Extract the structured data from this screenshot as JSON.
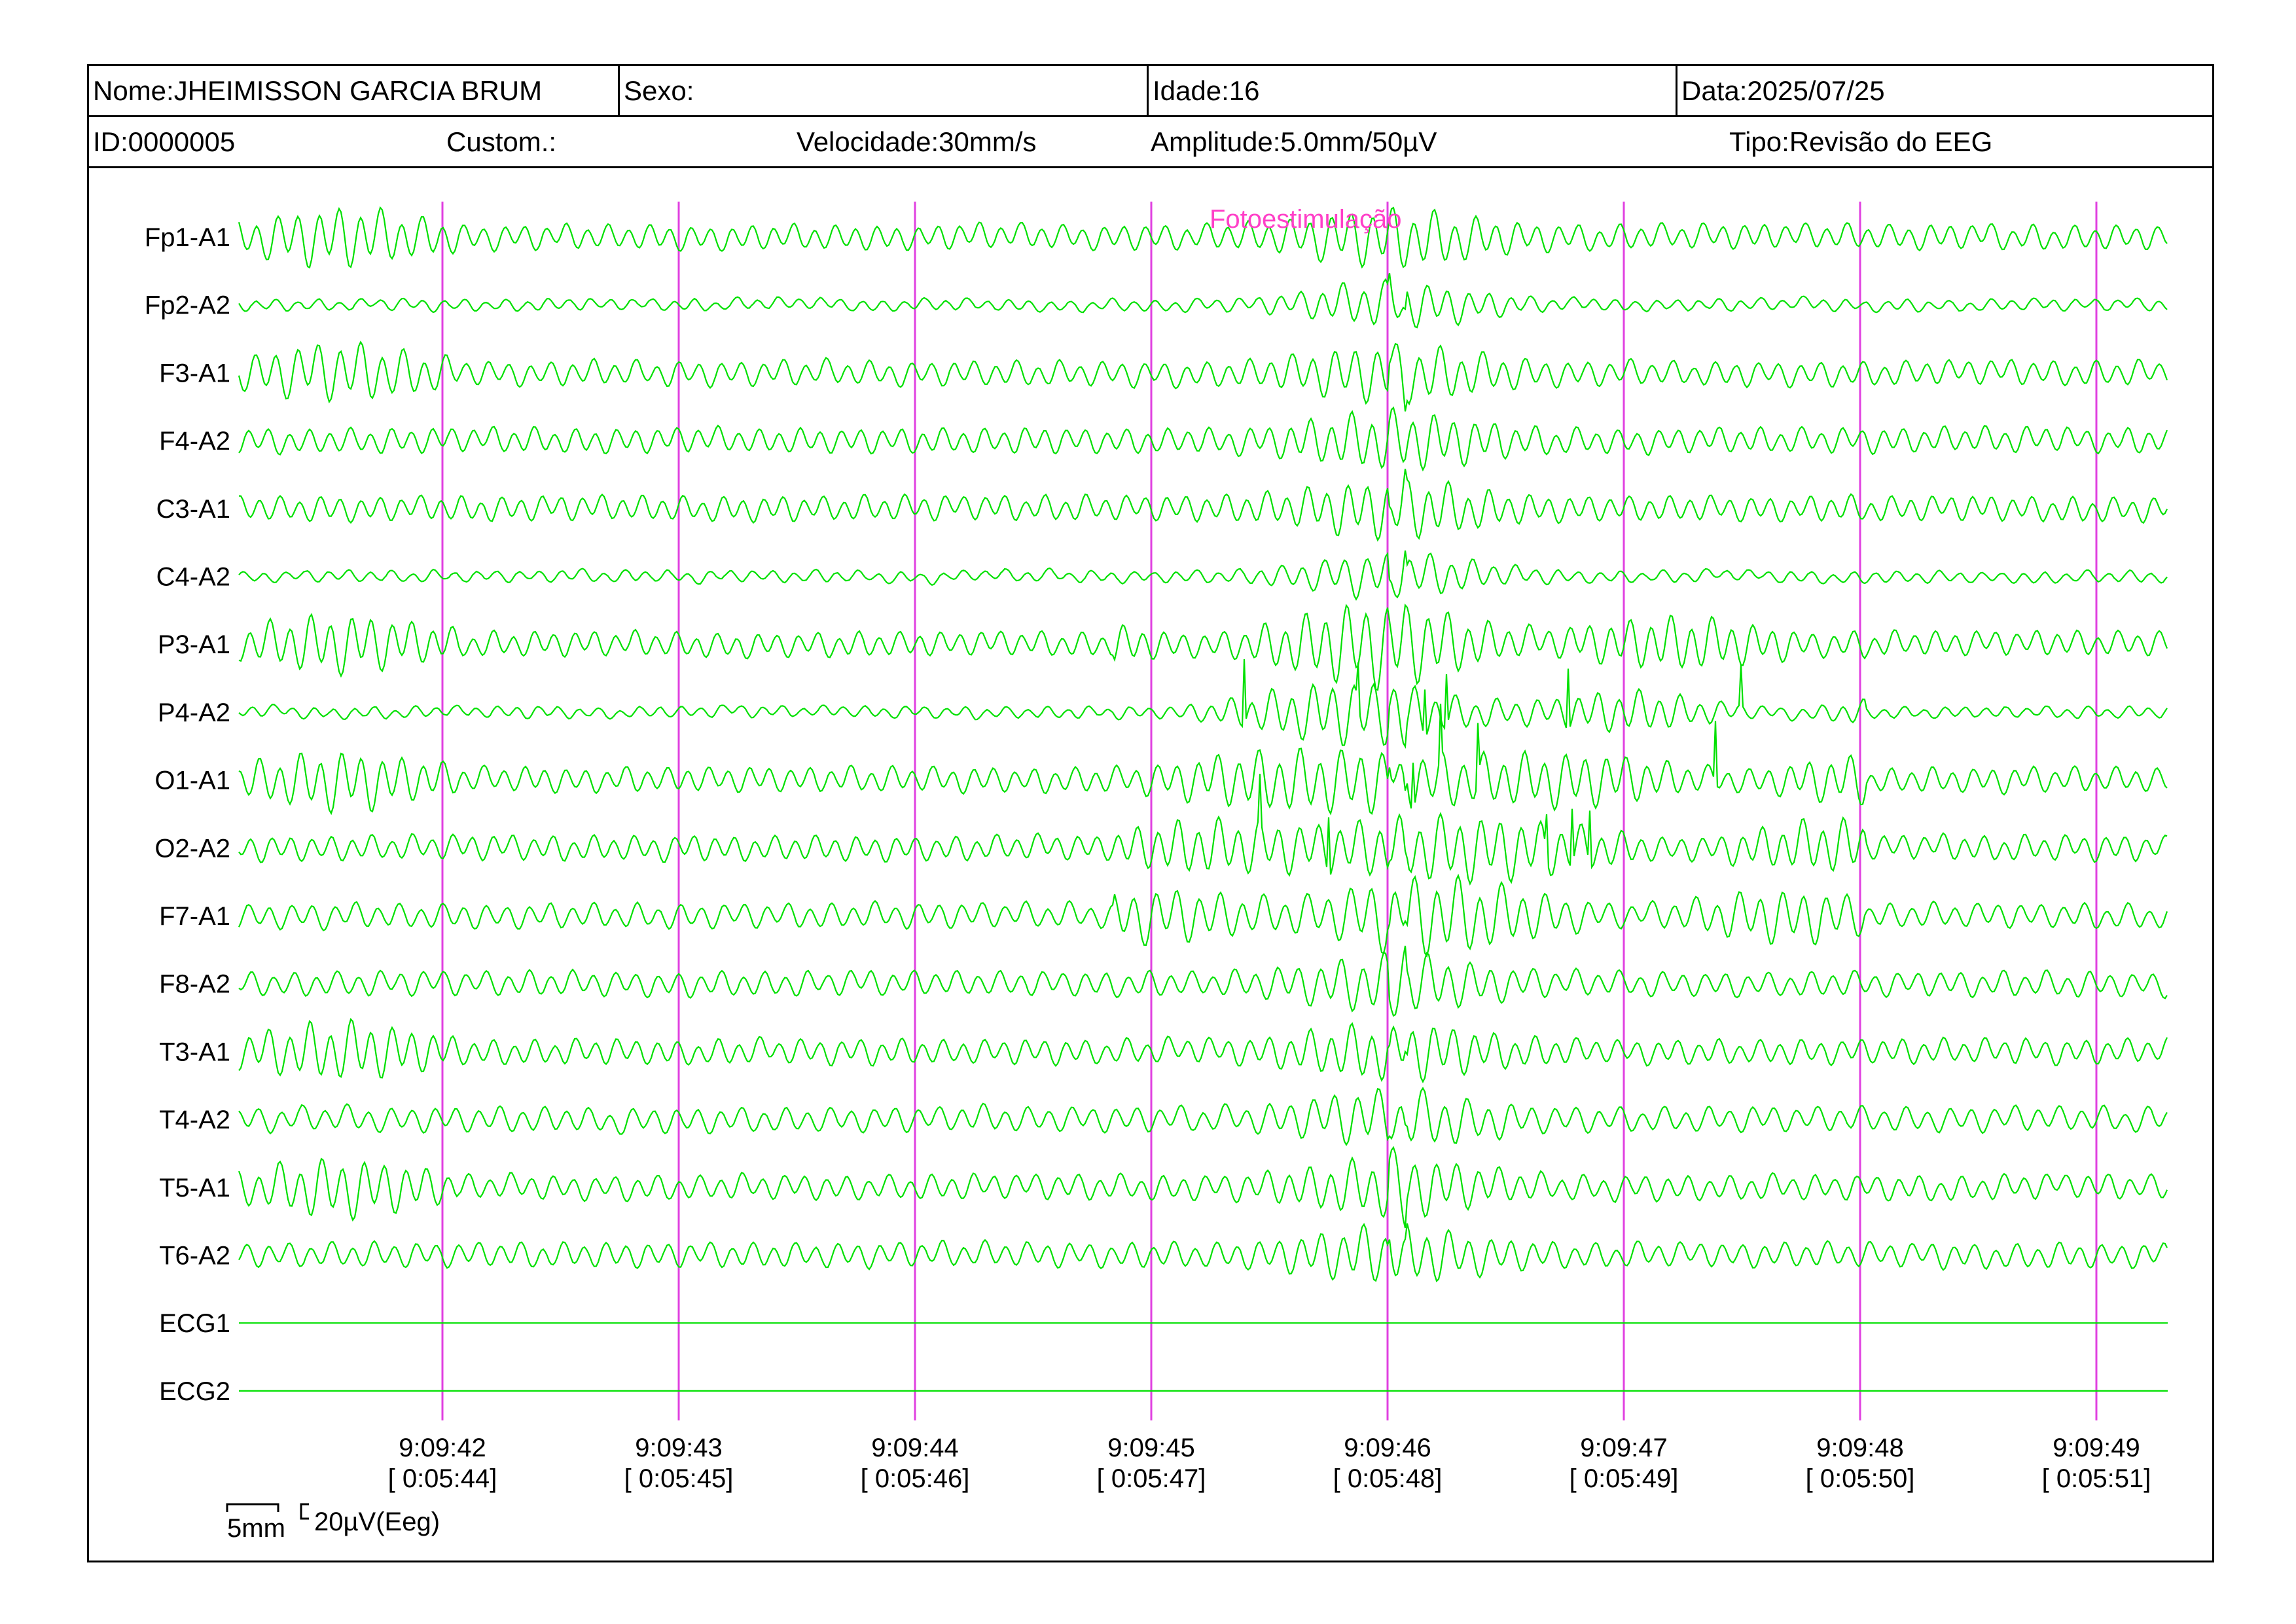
{
  "header": {
    "nome": "Nome:JHEIMISSON GARCIA BRUM",
    "sexo": "Sexo:",
    "idade": "Idade:16",
    "data": "Data:2025/07/25",
    "id": "ID:0000005",
    "custom": "Custom.:",
    "velocidade": "Velocidade:30mm/s",
    "amplitude": "Amplitude:5.0mm/50µV",
    "tipo": "Tipo:Revisão do EEG"
  },
  "chart_data": {
    "type": "line",
    "channels": [
      "Fp1-A1",
      "Fp2-A2",
      "F3-A1",
      "F4-A2",
      "C3-A1",
      "C4-A2",
      "P3-A1",
      "P4-A2",
      "O1-A1",
      "O2-A2",
      "F7-A1",
      "F8-A2",
      "T3-A1",
      "T4-A2",
      "T5-A1",
      "T6-A2",
      "ECG1",
      "ECG2"
    ],
    "time_marks": [
      {
        "clock": "9:09:42",
        "elapsed": "[ 0:05:44]"
      },
      {
        "clock": "9:09:43",
        "elapsed": "[ 0:05:45]"
      },
      {
        "clock": "9:09:44",
        "elapsed": "[ 0:05:46]"
      },
      {
        "clock": "9:09:45",
        "elapsed": "[ 0:05:47]"
      },
      {
        "clock": "9:09:46",
        "elapsed": "[ 0:05:48]"
      },
      {
        "clock": "9:09:47",
        "elapsed": "[ 0:05:49]"
      },
      {
        "clock": "9:09:48",
        "elapsed": "[ 0:05:50]"
      },
      {
        "clock": "9:09:49",
        "elapsed": "[ 0:05:51]"
      }
    ],
    "annotation": {
      "text": "Fotoestimulação",
      "time": "9:09:45"
    },
    "scale": {
      "time_bar": "5mm",
      "amplitude_bar": "20µV(Eeg)"
    },
    "colors": {
      "trace": "#00e000",
      "marker": "#e040e0",
      "annotation": "#ff40c8"
    }
  }
}
